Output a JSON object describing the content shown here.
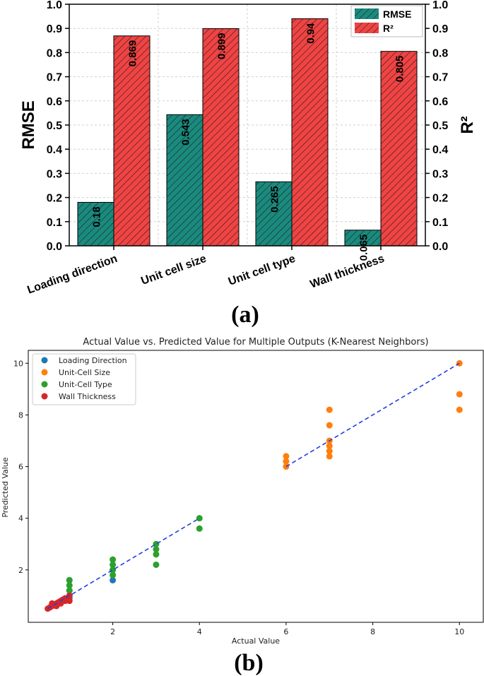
{
  "chart_data": [
    {
      "panel": "(a)",
      "type": "bar",
      "categories": [
        "Loading direction",
        "Unit cell size",
        "Unit cell type",
        "Wall thickness"
      ],
      "series": [
        {
          "name": "RMSE",
          "axis": "left",
          "values": [
            0.18,
            0.543,
            0.265,
            0.065
          ],
          "labels": [
            "0.18",
            "0.543",
            "0.265",
            "0.065"
          ],
          "color": "#1a8a7e"
        },
        {
          "name": "R²",
          "axis": "right",
          "values": [
            0.869,
            0.899,
            0.94,
            0.805
          ],
          "labels": [
            "0.869",
            "0.899",
            "0.94",
            "0.805"
          ],
          "color": "#f04343"
        }
      ],
      "ylabel": "RMSE",
      "y2label": "R²",
      "ylim": [
        0,
        1.0
      ],
      "y2lim": [
        0,
        1.0
      ],
      "yticks": [
        "0.0",
        "0.1",
        "0.2",
        "0.3",
        "0.4",
        "0.5",
        "0.6",
        "0.7",
        "0.8",
        "0.9",
        "1.0"
      ],
      "legend": "top-right",
      "grid": true
    },
    {
      "panel": "(b)",
      "type": "scatter",
      "title": "Actual Value vs. Predicted Value for Multiple Outputs (K-Nearest Neighbors)",
      "xlabel": "Actual Value",
      "ylabel": "Predicted Value",
      "xlim": [
        0.05,
        10.55
      ],
      "ylim": [
        -0.03,
        10.5
      ],
      "xticks": [
        "2",
        "4",
        "6",
        "8",
        "10"
      ],
      "yticks": [
        "2",
        "4",
        "6",
        "8",
        "10"
      ],
      "legend": "top-left",
      "series": [
        {
          "name": "Loading Direction",
          "color": "#1f77b4",
          "points": [
            [
              1,
              1.6
            ],
            [
              1,
              1.2
            ],
            [
              1,
              1.0
            ],
            [
              2,
              1.6
            ],
            [
              2,
              2.0
            ],
            [
              1,
              0.9
            ]
          ]
        },
        {
          "name": "Unit-Cell Size",
          "color": "#ff7f0e",
          "points": [
            [
              6,
              6.0
            ],
            [
              6,
              6.2
            ],
            [
              6,
              6.4
            ],
            [
              7,
              8.2
            ],
            [
              7,
              7.6
            ],
            [
              7,
              7.0
            ],
            [
              7,
              6.8
            ],
            [
              7,
              6.6
            ],
            [
              7,
              6.4
            ],
            [
              10,
              10.0
            ],
            [
              10,
              8.8
            ],
            [
              10,
              8.2
            ]
          ]
        },
        {
          "name": "Unit-Cell Type",
          "color": "#2ca02c",
          "points": [
            [
              1,
              1.0
            ],
            [
              1,
              1.2
            ],
            [
              1,
              1.4
            ],
            [
              1,
              1.6
            ],
            [
              2,
              1.8
            ],
            [
              2,
              2.0
            ],
            [
              2,
              2.2
            ],
            [
              2,
              2.4
            ],
            [
              3,
              3.0
            ],
            [
              3,
              2.8
            ],
            [
              3,
              2.6
            ],
            [
              3,
              2.2
            ],
            [
              4,
              4.0
            ],
            [
              4,
              3.6
            ]
          ]
        },
        {
          "name": "Wall Thickness",
          "color": "#d62728",
          "points": [
            [
              0.5,
              0.5
            ],
            [
              0.55,
              0.55
            ],
            [
              0.6,
              0.6
            ],
            [
              0.6,
              0.7
            ],
            [
              0.7,
              0.7
            ],
            [
              0.7,
              0.6
            ],
            [
              0.75,
              0.75
            ],
            [
              0.8,
              0.8
            ],
            [
              0.8,
              0.7
            ],
            [
              0.85,
              0.85
            ],
            [
              0.9,
              0.9
            ],
            [
              0.9,
              0.8
            ],
            [
              0.95,
              0.9
            ],
            [
              1.0,
              1.0
            ],
            [
              1.0,
              0.8
            ]
          ]
        }
      ],
      "reference_line": {
        "style": "dashed",
        "color": "#1f3fe0",
        "segments": [
          [
            0.5,
            0.5,
            4,
            4
          ],
          [
            6,
            6,
            10,
            10
          ]
        ]
      }
    }
  ]
}
